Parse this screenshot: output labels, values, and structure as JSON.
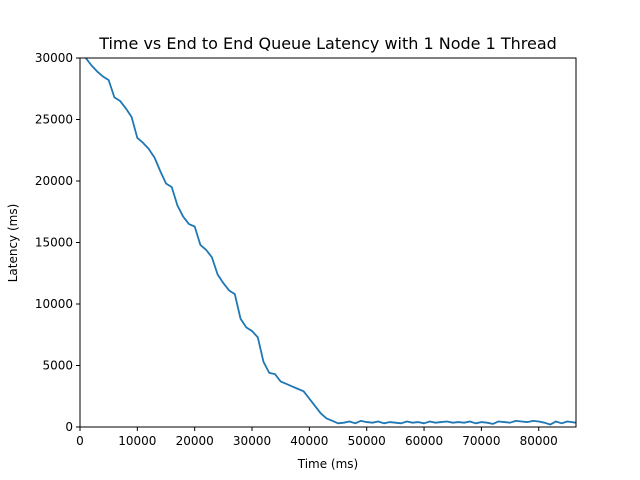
{
  "chart_data": {
    "type": "line",
    "title": "Time vs End to End Queue Latency with 1 Node 1 Thread",
    "xlabel": "Time (ms)",
    "ylabel": "Latency (ms)",
    "xlim": [
      0,
      86500
    ],
    "ylim": [
      0,
      30000
    ],
    "xticks": [
      0,
      10000,
      20000,
      30000,
      40000,
      50000,
      60000,
      70000,
      80000
    ],
    "yticks": [
      0,
      5000,
      10000,
      15000,
      20000,
      25000,
      30000
    ],
    "grid": false,
    "legend": "none",
    "colors": {
      "line": "#1f77b4",
      "axes": "#000000",
      "background": "#ffffff"
    },
    "series": [
      {
        "x": [
          0,
          1000,
          2000,
          3000,
          4000,
          5000,
          6000,
          7000,
          8000,
          9000,
          10000,
          11000,
          12000,
          13000,
          14000,
          15000,
          16000,
          17000,
          18000,
          19000,
          20000,
          21000,
          22000,
          23000,
          24000,
          25000,
          26000,
          27000,
          28000,
          29000,
          30000,
          31000,
          32000,
          33000,
          34000,
          35000,
          36000,
          37000,
          38000,
          39000,
          40000,
          41000,
          42000,
          43000,
          44000,
          45000,
          46000,
          47000,
          48000,
          49000,
          50000,
          51000,
          52000,
          53000,
          54000,
          55000,
          56000,
          57000,
          58000,
          59000,
          60000,
          61000,
          62000,
          63000,
          64000,
          65000,
          66000,
          67000,
          68000,
          69000,
          70000,
          71000,
          72000,
          73000,
          74000,
          75000,
          76000,
          77000,
          78000,
          79000,
          80000,
          81000,
          82000,
          83000,
          84000,
          85000,
          86500
        ],
        "y": [
          30400,
          30000,
          29400,
          28900,
          28500,
          28200,
          26800,
          26500,
          25900,
          25200,
          23500,
          23100,
          22600,
          21900,
          20800,
          19800,
          19500,
          18000,
          17100,
          16500,
          16300,
          14800,
          14400,
          13800,
          12400,
          11700,
          11100,
          10800,
          8800,
          8100,
          7800,
          7300,
          5300,
          4400,
          4300,
          3700,
          3500,
          3300,
          3100,
          2900,
          2300,
          1700,
          1100,
          700,
          500,
          300,
          350,
          450,
          300,
          500,
          400,
          350,
          450,
          300,
          400,
          350,
          300,
          450,
          350,
          400,
          300,
          450,
          350,
          400,
          450,
          350,
          400,
          350,
          450,
          300,
          400,
          350,
          250,
          450,
          400,
          350,
          500,
          450,
          400,
          500,
          450,
          350,
          200,
          450,
          300,
          450,
          350
        ]
      }
    ]
  }
}
